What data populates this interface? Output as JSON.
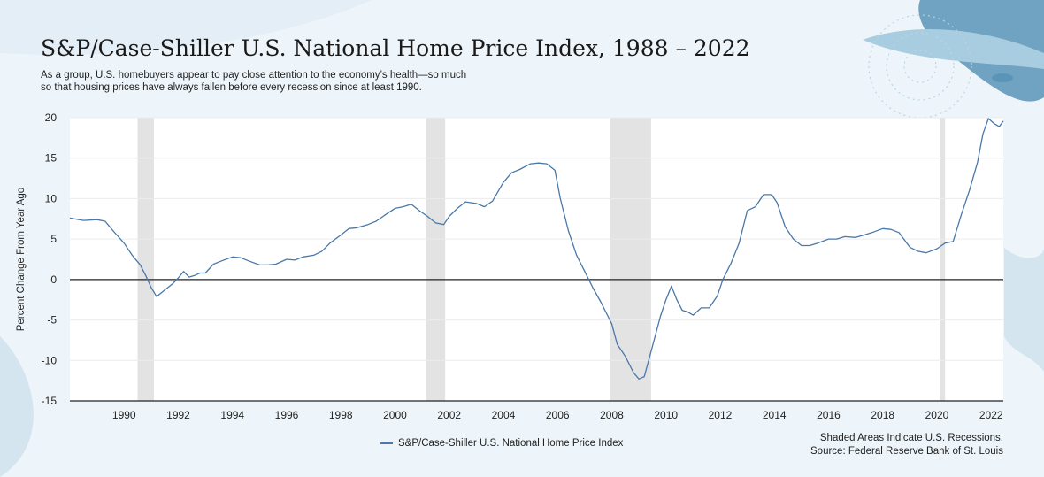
{
  "header": {
    "title": "S&P/Case-Shiller U.S. National Home Price Index, 1988 – 2022",
    "subtitle_line1": "As a group, U.S. homebuyers appear to pay close attention to the economy’s health—so much",
    "subtitle_line2": "so that housing prices have always fallen before every recession since at least 1990."
  },
  "footer": {
    "legend_label": "S&P/Case-Shiller U.S. National Home Price Index",
    "note_line1": "Shaded Areas Indicate U.S. Recessions.",
    "note_line2": "Source: Federal Reserve Bank of St. Louis"
  },
  "colors": {
    "line": "#4a78a8",
    "recession": "#e3e3e3",
    "zero_line": "#222222",
    "grid": "#ececec",
    "plot_bg": "#ffffff"
  },
  "chart_data": {
    "type": "line",
    "title": "S&P/Case-Shiller U.S. National Home Price Index, 1988 – 2022",
    "xlabel": "",
    "ylabel": "Percent Change From Year Ago",
    "xlim": [
      1988,
      2022.45
    ],
    "ylim": [
      -15,
      20
    ],
    "yticks": [
      -15,
      -10,
      -5,
      0,
      5,
      10,
      15,
      20
    ],
    "xticks": [
      1990,
      1992,
      1994,
      1996,
      1998,
      2000,
      2002,
      2004,
      2006,
      2008,
      2010,
      2012,
      2014,
      2016,
      2018,
      2020,
      2022
    ],
    "grid": true,
    "legend": "bottom-center",
    "recessions": [
      [
        1990.5,
        1991.1
      ],
      [
        2001.15,
        2001.85
      ],
      [
        2007.95,
        2009.45
      ],
      [
        2020.1,
        2020.3
      ]
    ],
    "series": [
      {
        "name": "S&P/Case-Shiller U.S. National Home Price Index",
        "x": [
          1988.0,
          1988.5,
          1989.0,
          1989.3,
          1989.6,
          1990.0,
          1990.3,
          1990.6,
          1990.8,
          1991.0,
          1991.2,
          1991.5,
          1991.8,
          1992.0,
          1992.2,
          1992.4,
          1992.6,
          1992.8,
          1993.0,
          1993.3,
          1993.6,
          1994.0,
          1994.3,
          1994.6,
          1995.0,
          1995.3,
          1995.6,
          1996.0,
          1996.3,
          1996.6,
          1997.0,
          1997.3,
          1997.6,
          1998.0,
          1998.3,
          1998.6,
          1999.0,
          1999.3,
          1999.6,
          2000.0,
          2000.3,
          2000.6,
          2000.9,
          2001.2,
          2001.5,
          2001.8,
          2002.0,
          2002.3,
          2002.6,
          2003.0,
          2003.3,
          2003.6,
          2004.0,
          2004.3,
          2004.6,
          2005.0,
          2005.3,
          2005.6,
          2005.9,
          2006.1,
          2006.4,
          2006.7,
          2007.0,
          2007.3,
          2007.6,
          2008.0,
          2008.2,
          2008.5,
          2008.8,
          2009.0,
          2009.2,
          2009.4,
          2009.6,
          2009.8,
          2010.0,
          2010.2,
          2010.4,
          2010.6,
          2010.8,
          2011.0,
          2011.3,
          2011.6,
          2011.9,
          2012.1,
          2012.4,
          2012.7,
          2013.0,
          2013.3,
          2013.6,
          2013.9,
          2014.1,
          2014.4,
          2014.7,
          2015.0,
          2015.3,
          2015.6,
          2016.0,
          2016.3,
          2016.6,
          2017.0,
          2017.3,
          2017.6,
          2018.0,
          2018.3,
          2018.6,
          2019.0,
          2019.3,
          2019.6,
          2020.0,
          2020.3,
          2020.6,
          2020.9,
          2021.2,
          2021.5,
          2021.7,
          2021.9,
          2022.1,
          2022.3,
          2022.45
        ],
        "values": [
          7.6,
          7.3,
          7.4,
          7.2,
          6.0,
          4.5,
          3.0,
          1.8,
          0.5,
          -1.0,
          -2.1,
          -1.3,
          -0.5,
          0.2,
          1.0,
          0.3,
          0.5,
          0.8,
          0.8,
          1.9,
          2.3,
          2.8,
          2.7,
          2.3,
          1.8,
          1.8,
          1.9,
          2.5,
          2.4,
          2.8,
          3.0,
          3.5,
          4.5,
          5.5,
          6.3,
          6.4,
          6.8,
          7.2,
          7.9,
          8.8,
          9.0,
          9.3,
          8.5,
          7.8,
          7.0,
          6.8,
          7.8,
          8.8,
          9.6,
          9.4,
          9.0,
          9.7,
          12.0,
          13.2,
          13.6,
          14.3,
          14.4,
          14.3,
          13.5,
          10.0,
          6.0,
          3.0,
          1.0,
          -1.0,
          -2.8,
          -5.5,
          -8.0,
          -9.5,
          -11.5,
          -12.3,
          -12.0,
          -9.5,
          -7.0,
          -4.5,
          -2.5,
          -0.8,
          -2.5,
          -3.8,
          -4.0,
          -4.4,
          -3.5,
          -3.5,
          -2.0,
          0.0,
          2.0,
          4.5,
          8.5,
          9.0,
          10.5,
          10.5,
          9.5,
          6.5,
          5.0,
          4.2,
          4.2,
          4.5,
          5.0,
          5.0,
          5.3,
          5.2,
          5.5,
          5.8,
          6.3,
          6.2,
          5.8,
          4.0,
          3.5,
          3.3,
          3.8,
          4.5,
          4.7,
          8.0,
          11.0,
          14.5,
          18.0,
          19.9,
          19.3,
          18.9,
          19.6
        ]
      }
    ]
  }
}
